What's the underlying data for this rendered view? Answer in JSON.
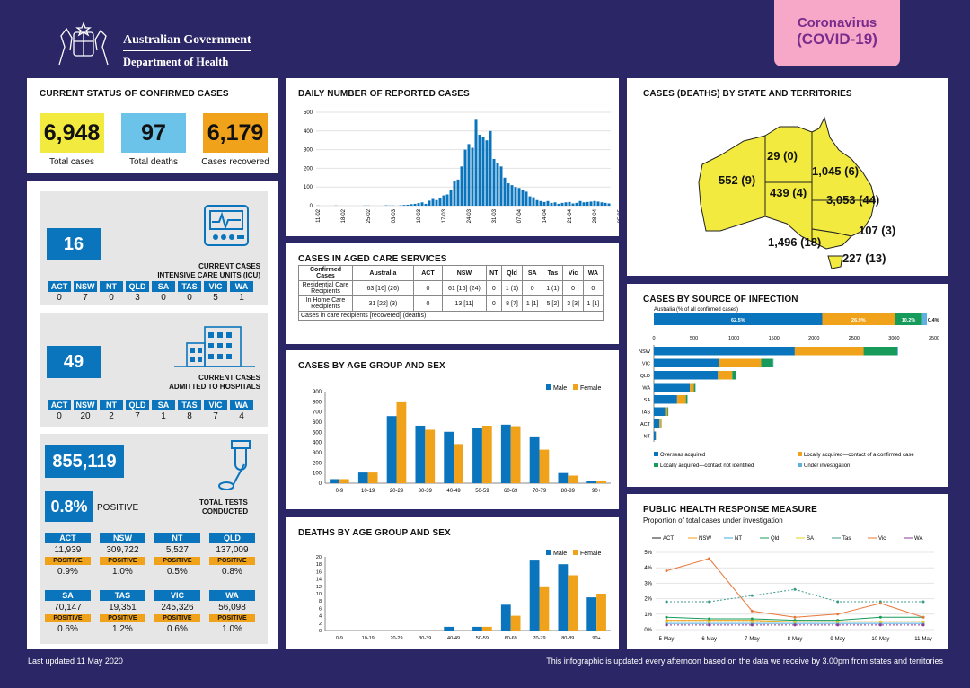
{
  "header": {
    "gov_line1": "Australian Government",
    "gov_line2": "Department of Health",
    "badge_line1": "Coronavirus",
    "badge_line2": "(COVID-19)"
  },
  "status": {
    "title": "CURRENT STATUS OF CONFIRMED CASES",
    "total_cases": "6,948",
    "total_cases_label": "Total cases",
    "total_deaths": "97",
    "total_deaths_label": "Total deaths",
    "recovered": "6,179",
    "recovered_label": "Cases recovered"
  },
  "icu": {
    "value": "16",
    "label_line1": "CURRENT CASES",
    "label_line2": "INTENSIVE CARE UNITS (ICU)",
    "states": [
      "ACT",
      "NSW",
      "NT",
      "QLD",
      "SA",
      "TAS",
      "VIC",
      "WA"
    ],
    "values": [
      "0",
      "7",
      "0",
      "3",
      "0",
      "0",
      "5",
      "1"
    ]
  },
  "hosp": {
    "value": "49",
    "label_line1": "CURRENT CASES",
    "label_line2": "ADMITTED TO HOSPITALS",
    "states": [
      "ACT",
      "NSW",
      "NT",
      "QLD",
      "SA",
      "TAS",
      "VIC",
      "WA"
    ],
    "values": [
      "0",
      "20",
      "2",
      "7",
      "1",
      "8",
      "7",
      "4"
    ]
  },
  "tests": {
    "total": "855,119",
    "positive_pct": "0.8%",
    "positive_label": "POSITIVE",
    "label_line1": "TOTAL TESTS",
    "label_line2": "CONDUCTED",
    "positive_word": "POSITIVE",
    "row1": [
      {
        "state": "ACT",
        "count": "11,939",
        "pct": "0.9%"
      },
      {
        "state": "NSW",
        "count": "309,722",
        "pct": "1.0%"
      },
      {
        "state": "NT",
        "count": "5,527",
        "pct": "0.5%"
      },
      {
        "state": "QLD",
        "count": "137,009",
        "pct": "0.8%"
      }
    ],
    "row2": [
      {
        "state": "SA",
        "count": "70,147",
        "pct": "0.6%"
      },
      {
        "state": "TAS",
        "count": "19,351",
        "pct": "1.2%"
      },
      {
        "state": "VIC",
        "count": "245,326",
        "pct": "0.6%"
      },
      {
        "state": "WA",
        "count": "56,098",
        "pct": "1.0%"
      }
    ]
  },
  "aged": {
    "title": "CASES IN AGED CARE SERVICES",
    "headers": [
      "Confirmed Cases",
      "Australia",
      "ACT",
      "NSW",
      "NT",
      "Qld",
      "SA",
      "Tas",
      "Vic",
      "WA"
    ],
    "row1_label": "Residential Care Recipients",
    "row1": [
      "63 [16] (26)",
      "0",
      "61 [16] (24)",
      "0",
      "1 (1)",
      "0",
      "1 (1)",
      "0",
      "0"
    ],
    "row2_label": "In Home Care Recipients",
    "row2": [
      "31 [22] (3)",
      "0",
      "13 [11]",
      "0",
      "8 [7]",
      "1 [1]",
      "5 [2]",
      "3 [3]",
      "1 [1]"
    ],
    "note": "Cases in care recipients [recovered] (deaths)"
  },
  "state_map": {
    "title": "CASES (DEATHS) BY STATE AND TERRITORIES",
    "wa": "552 (9)",
    "nt": "29 (0)",
    "qld": "1,045 (6)",
    "sa": "439 (4)",
    "nsw": "3,053 (44)",
    "act": "107 (3)",
    "vic": "1,496 (18)",
    "tas": "227 (13)"
  },
  "footer": {
    "updated": "Last updated 11 May 2020",
    "note": "This infographic is updated every afternoon based on the data we receive by 3.00pm from states and territories"
  },
  "colors": {
    "navy": "#2b2766",
    "blue": "#0a75bd",
    "orange": "#f0a21a",
    "yellow": "#f2ea3f",
    "green": "#179b5b",
    "pink": "#f7a8c8",
    "purple": "#7a2c8c"
  },
  "chart_data": [
    {
      "id": "daily",
      "type": "bar",
      "title": "DAILY NUMBER OF REPORTED CASES",
      "ylim": [
        0,
        500
      ],
      "yticks": [
        "0",
        "100",
        "200",
        "300",
        "400",
        "500"
      ],
      "xticklabels": [
        "11-02",
        "18-02",
        "25-02",
        "03-03",
        "10-03",
        "17-03",
        "24-03",
        "31-03",
        "07-04",
        "14-04",
        "21-04",
        "28-04",
        "05-05"
      ],
      "values": [
        1,
        0,
        0,
        0,
        0,
        1,
        0,
        0,
        0,
        0,
        0,
        0,
        0,
        1,
        1,
        0,
        0,
        0,
        0,
        2,
        1,
        1,
        0,
        2,
        4,
        5,
        8,
        10,
        14,
        18,
        10,
        27,
        36,
        30,
        40,
        55,
        60,
        85,
        130,
        140,
        210,
        300,
        330,
        310,
        460,
        380,
        370,
        350,
        400,
        250,
        230,
        210,
        150,
        120,
        110,
        100,
        95,
        85,
        75,
        50,
        45,
        30,
        25,
        20,
        25,
        15,
        18,
        10,
        15,
        18,
        20,
        12,
        15,
        25,
        18,
        20,
        22,
        25,
        22,
        18,
        15,
        12
      ]
    },
    {
      "id": "age_cases",
      "type": "bar",
      "title": "CASES BY AGE GROUP AND SEX",
      "categories": [
        "0-9",
        "10-19",
        "20-29",
        "30-39",
        "40-49",
        "50-59",
        "60-69",
        "70-79",
        "80-89",
        "90+"
      ],
      "ylim": [
        0,
        900
      ],
      "yticks": [
        "0",
        "100",
        "200",
        "300",
        "400",
        "500",
        "600",
        "700",
        "800",
        "900"
      ],
      "series": [
        {
          "name": "Male",
          "values": [
            40,
            105,
            660,
            565,
            505,
            540,
            575,
            460,
            100,
            20
          ]
        },
        {
          "name": "Female",
          "values": [
            40,
            105,
            795,
            525,
            385,
            565,
            560,
            330,
            75,
            25
          ]
        }
      ]
    },
    {
      "id": "age_deaths",
      "type": "bar",
      "title": "DEATHS BY AGE GROUP AND SEX",
      "categories": [
        "0-9",
        "10-19",
        "20-29",
        "30-39",
        "40-49",
        "50-59",
        "60-69",
        "70-79",
        "80-89",
        "90+"
      ],
      "ylim": [
        0,
        20
      ],
      "yticks": [
        "0",
        "2",
        "4",
        "6",
        "8",
        "10",
        "12",
        "14",
        "16",
        "18",
        "20"
      ],
      "series": [
        {
          "name": "Male",
          "values": [
            0,
            0,
            0,
            0,
            1,
            1,
            7,
            19,
            18,
            9
          ]
        },
        {
          "name": "Female",
          "values": [
            0,
            0,
            0,
            0,
            0,
            1,
            4,
            12,
            15,
            10
          ]
        }
      ]
    },
    {
      "id": "source",
      "type": "bar",
      "title": "CASES BY SOURCE OF INFECTION",
      "subtitle": "Australia (% of all confirmed cases)",
      "pct_bar": [
        {
          "label": "62.5%",
          "value": 62.5
        },
        {
          "label": "26.9%",
          "value": 26.9
        },
        {
          "label": "10.2%",
          "value": 10.2
        },
        {
          "label": "0.4%",
          "value": 0.4
        }
      ],
      "xlim": [
        0,
        3500
      ],
      "xticks": [
        "0",
        "500",
        "1000",
        "1500",
        "2000",
        "2500",
        "3000",
        "3500"
      ],
      "categories": [
        "NSW",
        "VIC",
        "QLD",
        "WA",
        "SA",
        "TAS",
        "ACT",
        "NT"
      ],
      "series": [
        {
          "name": "Overseas acquired",
          "values": [
            1760,
            810,
            800,
            450,
            290,
            140,
            70,
            22
          ]
        },
        {
          "name": "Locally acquired—contact of a confirmed case",
          "values": [
            860,
            530,
            180,
            50,
            110,
            30,
            20,
            4
          ]
        },
        {
          "name": "Locally acquired—contact not identified",
          "values": [
            420,
            150,
            45,
            20,
            20,
            10,
            5,
            2
          ]
        },
        {
          "name": "Under investigation",
          "values": [
            10,
            5,
            5,
            2,
            1,
            1,
            0,
            0
          ]
        }
      ]
    },
    {
      "id": "response",
      "type": "line",
      "title": "PUBLIC HEALTH RESPONSE MEASURE",
      "subtitle": "Proportion of total cases under investigation",
      "x": [
        "5-May",
        "6-May",
        "7-May",
        "8-May",
        "9-May",
        "10-May",
        "11-May"
      ],
      "ylim": [
        0,
        5
      ],
      "yticks": [
        "0%",
        "1%",
        "2%",
        "3%",
        "4%",
        "5%"
      ],
      "series": [
        {
          "name": "ACT",
          "values": [
            0.5,
            0.5,
            0.5,
            0.5,
            0.5,
            0.5,
            0.5
          ]
        },
        {
          "name": "NSW",
          "values": [
            0.6,
            0.6,
            0.6,
            0.5,
            0.5,
            0.5,
            0.5
          ]
        },
        {
          "name": "NT",
          "values": [
            0.4,
            0.4,
            0.4,
            0.4,
            0.4,
            0.4,
            0.4
          ]
        },
        {
          "name": "Qld",
          "values": [
            0.8,
            0.7,
            0.7,
            0.6,
            0.6,
            0.8,
            0.8
          ]
        },
        {
          "name": "SA",
          "values": [
            0.5,
            0.5,
            0.5,
            0.5,
            0.5,
            0.5,
            0.5
          ]
        },
        {
          "name": "Tas",
          "values": [
            1.8,
            1.8,
            2.2,
            2.6,
            1.8,
            1.8,
            1.8
          ]
        },
        {
          "name": "Vic",
          "values": [
            3.8,
            4.6,
            1.2,
            0.8,
            1.0,
            1.7,
            0.8
          ]
        },
        {
          "name": "WA",
          "values": [
            0.3,
            0.3,
            0.3,
            0.3,
            0.3,
            0.3,
            0.3
          ]
        }
      ]
    }
  ]
}
